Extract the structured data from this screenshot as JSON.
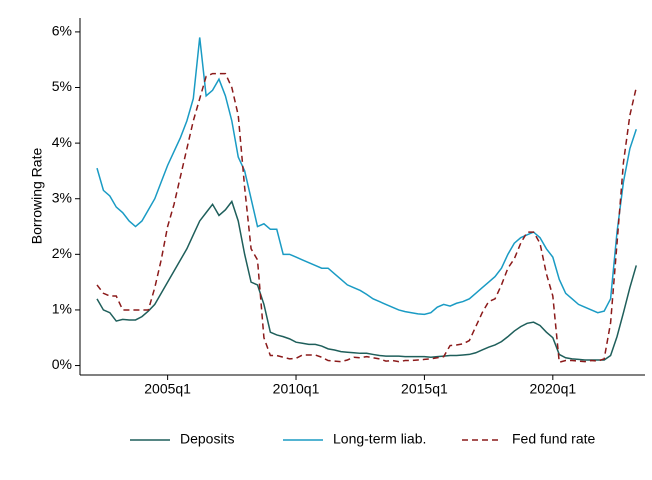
{
  "chart_data": {
    "type": "line",
    "y_label": "Borrowing Rate",
    "x": [
      "2002q2",
      "2002q3",
      "2002q4",
      "2003q1",
      "2003q2",
      "2003q3",
      "2003q4",
      "2004q1",
      "2004q2",
      "2004q3",
      "2004q4",
      "2005q1",
      "2005q2",
      "2005q3",
      "2005q4",
      "2006q1",
      "2006q2",
      "2006q3",
      "2006q4",
      "2007q1",
      "2007q2",
      "2007q3",
      "2007q4",
      "2008q1",
      "2008q2",
      "2008q3",
      "2008q4",
      "2009q1",
      "2009q2",
      "2009q3",
      "2009q4",
      "2010q1",
      "2010q2",
      "2010q3",
      "2010q4",
      "2011q1",
      "2011q2",
      "2011q3",
      "2011q4",
      "2012q1",
      "2012q2",
      "2012q3",
      "2012q4",
      "2013q1",
      "2013q2",
      "2013q3",
      "2013q4",
      "2014q1",
      "2014q2",
      "2014q3",
      "2014q4",
      "2015q1",
      "2015q2",
      "2015q3",
      "2015q4",
      "2016q1",
      "2016q2",
      "2016q3",
      "2016q4",
      "2017q1",
      "2017q2",
      "2017q3",
      "2017q4",
      "2018q1",
      "2018q2",
      "2018q3",
      "2018q4",
      "2019q1",
      "2019q2",
      "2019q3",
      "2019q4",
      "2020q1",
      "2020q2",
      "2020q3",
      "2020q4",
      "2021q1",
      "2021q2",
      "2021q3",
      "2021q4",
      "2022q1",
      "2022q2",
      "2022q3",
      "2022q4",
      "2023q1",
      "2023q2"
    ],
    "series": [
      {
        "name": "Deposits",
        "color": "#1f5f5b",
        "dash": false,
        "values": [
          1.2,
          1.0,
          0.95,
          0.8,
          0.83,
          0.82,
          0.82,
          0.88,
          0.98,
          1.1,
          1.3,
          1.5,
          1.7,
          1.9,
          2.1,
          2.35,
          2.6,
          2.75,
          2.9,
          2.7,
          2.8,
          2.95,
          2.6,
          2.0,
          1.5,
          1.45,
          1.1,
          0.6,
          0.55,
          0.52,
          0.48,
          0.42,
          0.4,
          0.38,
          0.38,
          0.35,
          0.3,
          0.28,
          0.25,
          0.24,
          0.23,
          0.22,
          0.22,
          0.2,
          0.18,
          0.17,
          0.17,
          0.17,
          0.16,
          0.16,
          0.16,
          0.16,
          0.15,
          0.16,
          0.17,
          0.18,
          0.18,
          0.19,
          0.2,
          0.23,
          0.28,
          0.33,
          0.37,
          0.43,
          0.52,
          0.62,
          0.7,
          0.76,
          0.78,
          0.72,
          0.6,
          0.5,
          0.2,
          0.14,
          0.12,
          0.11,
          0.1,
          0.1,
          0.1,
          0.1,
          0.18,
          0.52,
          0.95,
          1.4,
          1.8
        ]
      },
      {
        "name": "Long-term liab.",
        "color": "#1a9bc4",
        "dash": false,
        "values": [
          3.55,
          3.15,
          3.05,
          2.85,
          2.75,
          2.6,
          2.5,
          2.6,
          2.8,
          3.0,
          3.3,
          3.6,
          3.85,
          4.1,
          4.4,
          4.8,
          5.9,
          4.85,
          4.95,
          5.15,
          4.85,
          4.4,
          3.75,
          3.5,
          3.0,
          2.5,
          2.55,
          2.45,
          2.45,
          2.0,
          2.0,
          1.95,
          1.9,
          1.85,
          1.8,
          1.75,
          1.75,
          1.65,
          1.55,
          1.45,
          1.4,
          1.35,
          1.28,
          1.2,
          1.15,
          1.1,
          1.05,
          1.0,
          0.97,
          0.95,
          0.93,
          0.92,
          0.95,
          1.05,
          1.1,
          1.07,
          1.12,
          1.15,
          1.2,
          1.3,
          1.4,
          1.5,
          1.6,
          1.75,
          2.0,
          2.2,
          2.3,
          2.35,
          2.4,
          2.3,
          2.1,
          1.95,
          1.55,
          1.3,
          1.2,
          1.1,
          1.05,
          1.0,
          0.95,
          0.98,
          1.2,
          2.4,
          3.3,
          3.9,
          4.25
        ]
      },
      {
        "name": "Fed fund rate",
        "color": "#8b1a1a",
        "dash": true,
        "values": [
          1.45,
          1.3,
          1.25,
          1.25,
          1.0,
          1.0,
          1.0,
          1.0,
          1.0,
          1.4,
          1.9,
          2.5,
          2.9,
          3.4,
          3.9,
          4.4,
          4.8,
          5.2,
          5.25,
          5.25,
          5.25,
          5.0,
          4.5,
          3.2,
          2.1,
          1.9,
          0.5,
          0.18,
          0.18,
          0.15,
          0.12,
          0.13,
          0.19,
          0.19,
          0.19,
          0.15,
          0.09,
          0.08,
          0.07,
          0.1,
          0.15,
          0.14,
          0.16,
          0.14,
          0.12,
          0.08,
          0.09,
          0.07,
          0.09,
          0.09,
          0.1,
          0.11,
          0.12,
          0.14,
          0.16,
          0.36,
          0.37,
          0.39,
          0.45,
          0.7,
          0.95,
          1.15,
          1.2,
          1.45,
          1.75,
          1.92,
          2.2,
          2.4,
          2.4,
          2.2,
          1.65,
          1.25,
          0.06,
          0.09,
          0.09,
          0.08,
          0.07,
          0.09,
          0.08,
          0.12,
          0.77,
          2.2,
          3.65,
          4.5,
          5.0
        ]
      }
    ],
    "ylim": [
      -0.17,
      6.25
    ],
    "yticks": [
      {
        "value": 0,
        "label": "0%"
      },
      {
        "value": 1,
        "label": "1%"
      },
      {
        "value": 2,
        "label": "2%"
      },
      {
        "value": 3,
        "label": "3%"
      },
      {
        "value": 4,
        "label": "4%"
      },
      {
        "value": 5,
        "label": "5%"
      },
      {
        "value": 6,
        "label": "6%"
      }
    ],
    "xticks": [
      "2005q1",
      "2010q1",
      "2015q1",
      "2020q1"
    ],
    "grid": false
  }
}
